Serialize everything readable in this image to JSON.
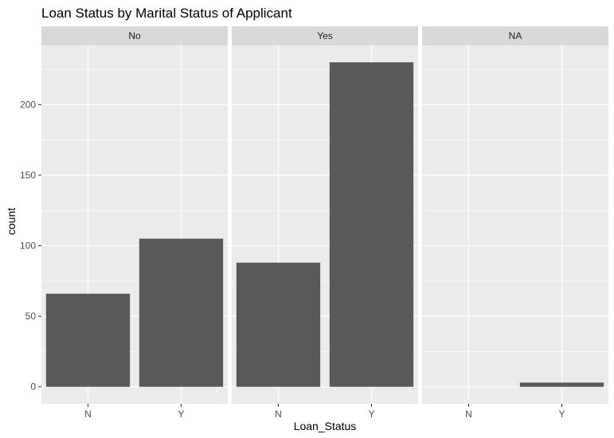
{
  "chart_data": {
    "type": "bar",
    "title": "Loan Status by Marital Status of Applicant",
    "xlabel": "Loan_Status",
    "ylabel": "count",
    "facet_variable": "Married",
    "categories": [
      "N",
      "Y"
    ],
    "facets": [
      {
        "label": "No",
        "values": [
          66,
          105
        ]
      },
      {
        "label": "Yes",
        "values": [
          88,
          230
        ]
      },
      {
        "label": "NA",
        "values": [
          0,
          3
        ]
      }
    ],
    "ylim": [
      -12,
      242
    ],
    "yticks": [
      0,
      50,
      100,
      150,
      200
    ],
    "grid": true,
    "colors": {
      "bar": "#595959",
      "panel_bg": "#ebebeb",
      "strip_bg": "#d9d9d9",
      "grid": "#ffffff"
    }
  }
}
